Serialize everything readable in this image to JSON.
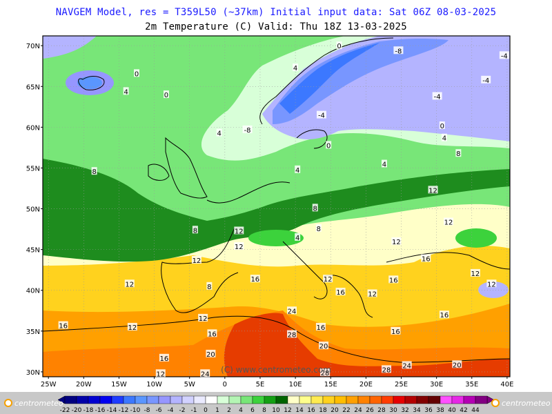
{
  "header": {
    "line1": "NAVGEM Model, res = T359L50 (~37km)   Initial input data: Sat 06Z 08-03-2025",
    "line2": "2m Temperature (C)  Valid: Thu 18Z 13-03-2025"
  },
  "watermark": "(C) www.centrometeo.com",
  "logo_text": "centrometeo",
  "lat_labels": [
    "70N",
    "65N",
    "60N",
    "55N",
    "50N",
    "45N",
    "40N",
    "35N",
    "30N"
  ],
  "lat_values": [
    70,
    65,
    60,
    55,
    50,
    45,
    40,
    35,
    30
  ],
  "lon_labels": [
    "25W",
    "20W",
    "15W",
    "10W",
    "5W",
    "0",
    "5E",
    "10E",
    "15E",
    "20E",
    "25E",
    "30E",
    "35E",
    "40E"
  ],
  "lon_values": [
    -25,
    -20,
    -15,
    -10,
    -5,
    0,
    5,
    10,
    15,
    20,
    25,
    30,
    35,
    40
  ],
  "legend": {
    "labels": [
      "-22",
      "-20",
      "-18",
      "-16",
      "-14",
      "-12",
      "-10",
      "-8",
      "-6",
      "-4",
      "-2",
      "-1",
      "0",
      "1",
      "2",
      "4",
      "6",
      "8",
      "10",
      "12",
      "14",
      "16",
      "18",
      "20",
      "22",
      "24",
      "26",
      "28",
      "30",
      "32",
      "34",
      "36",
      "38",
      "40",
      "42",
      "44"
    ],
    "colors": [
      "#000080",
      "#0000a8",
      "#0000d0",
      "#0000f0",
      "#1e3cff",
      "#3c78ff",
      "#5a96ff",
      "#7896ff",
      "#9696ff",
      "#b4b4ff",
      "#d2d2ff",
      "#ebebff",
      "#ffffff",
      "#d8ffd8",
      "#b4f5b4",
      "#78e678",
      "#3cd23c",
      "#14a014",
      "#006400",
      "#ffffc8",
      "#ffff8c",
      "#ffeb50",
      "#ffd21e",
      "#ffbe00",
      "#ffa000",
      "#ff8200",
      "#ff6400",
      "#ff3c00",
      "#e60000",
      "#b40000",
      "#820000",
      "#640000",
      "#ff50ff",
      "#e628e6",
      "#b400b4",
      "#820082"
    ]
  },
  "contour_labels": [
    {
      "text": "0",
      "lon": -12.5,
      "lat": 66.6
    },
    {
      "text": "4",
      "lon": -14.0,
      "lat": 64.4
    },
    {
      "text": "0",
      "lon": -8.3,
      "lat": 64.0
    },
    {
      "text": "4",
      "lon": 10.0,
      "lat": 67.3
    },
    {
      "text": "0",
      "lon": 16.2,
      "lat": 70.0
    },
    {
      "text": "-8",
      "lon": 24.6,
      "lat": 69.4
    },
    {
      "text": "-4",
      "lon": 39.6,
      "lat": 68.8
    },
    {
      "text": "-4",
      "lon": 37.0,
      "lat": 65.8
    },
    {
      "text": "-4",
      "lon": 30.1,
      "lat": 63.8
    },
    {
      "text": "-4",
      "lon": 13.7,
      "lat": 61.5
    },
    {
      "text": "-8",
      "lon": 3.2,
      "lat": 59.7
    },
    {
      "text": "4",
      "lon": -0.8,
      "lat": 59.3
    },
    {
      "text": "0",
      "lon": 30.8,
      "lat": 60.2
    },
    {
      "text": "4",
      "lon": 31.1,
      "lat": 58.7
    },
    {
      "text": "0",
      "lon": 14.7,
      "lat": 57.8
    },
    {
      "text": "8",
      "lon": 33.1,
      "lat": 56.8
    },
    {
      "text": "4",
      "lon": 22.6,
      "lat": 55.5
    },
    {
      "text": "4",
      "lon": 10.3,
      "lat": 54.8
    },
    {
      "text": "8",
      "lon": -18.5,
      "lat": 54.6
    },
    {
      "text": "12",
      "lon": 29.5,
      "lat": 52.3
    },
    {
      "text": "12",
      "lon": 31.7,
      "lat": 48.4
    },
    {
      "text": "8",
      "lon": 12.8,
      "lat": 50.1
    },
    {
      "text": "8",
      "lon": 13.3,
      "lat": 47.6
    },
    {
      "text": "8",
      "lon": -4.2,
      "lat": 47.4
    },
    {
      "text": "12",
      "lon": 2.0,
      "lat": 47.3
    },
    {
      "text": "4",
      "lon": 10.3,
      "lat": 46.5
    },
    {
      "text": "12",
      "lon": 24.3,
      "lat": 46.0
    },
    {
      "text": "12",
      "lon": 2.0,
      "lat": 45.4
    },
    {
      "text": "16",
      "lon": 28.5,
      "lat": 43.9
    },
    {
      "text": "12",
      "lon": -4.0,
      "lat": 43.7
    },
    {
      "text": "12",
      "lon": 35.5,
      "lat": 42.1
    },
    {
      "text": "12",
      "lon": 37.8,
      "lat": 40.8
    },
    {
      "text": "12",
      "lon": -13.5,
      "lat": 40.8
    },
    {
      "text": "8",
      "lon": -2.2,
      "lat": 40.5
    },
    {
      "text": "16",
      "lon": 4.3,
      "lat": 41.4
    },
    {
      "text": "12",
      "lon": 14.6,
      "lat": 41.4
    },
    {
      "text": "16",
      "lon": 16.4,
      "lat": 39.8
    },
    {
      "text": "12",
      "lon": 20.9,
      "lat": 39.6
    },
    {
      "text": "16",
      "lon": 23.9,
      "lat": 41.3
    },
    {
      "text": "16",
      "lon": 31.1,
      "lat": 37.0
    },
    {
      "text": "12",
      "lon": -3.1,
      "lat": 36.6
    },
    {
      "text": "24",
      "lon": 9.5,
      "lat": 37.5
    },
    {
      "text": "16",
      "lon": 13.6,
      "lat": 35.5
    },
    {
      "text": "16",
      "lon": -22.9,
      "lat": 35.7
    },
    {
      "text": "16",
      "lon": -1.8,
      "lat": 34.7
    },
    {
      "text": "16",
      "lon": 24.2,
      "lat": 35.0
    },
    {
      "text": "28",
      "lon": 9.5,
      "lat": 34.6
    },
    {
      "text": "20",
      "lon": 14.0,
      "lat": 33.2
    },
    {
      "text": "20",
      "lon": -2.0,
      "lat": 32.2
    },
    {
      "text": "16",
      "lon": -8.6,
      "lat": 31.7
    },
    {
      "text": "24",
      "lon": 25.8,
      "lat": 30.8
    },
    {
      "text": "20",
      "lon": 32.9,
      "lat": 30.9
    },
    {
      "text": "28",
      "lon": 22.9,
      "lat": 30.3
    },
    {
      "text": "12",
      "lon": -9.1,
      "lat": 29.8
    },
    {
      "text": "24",
      "lon": -2.8,
      "lat": 29.8
    },
    {
      "text": "28",
      "lon": 14.2,
      "lat": 29.9
    },
    {
      "text": "12",
      "lon": -13.1,
      "lat": 35.5
    }
  ]
}
